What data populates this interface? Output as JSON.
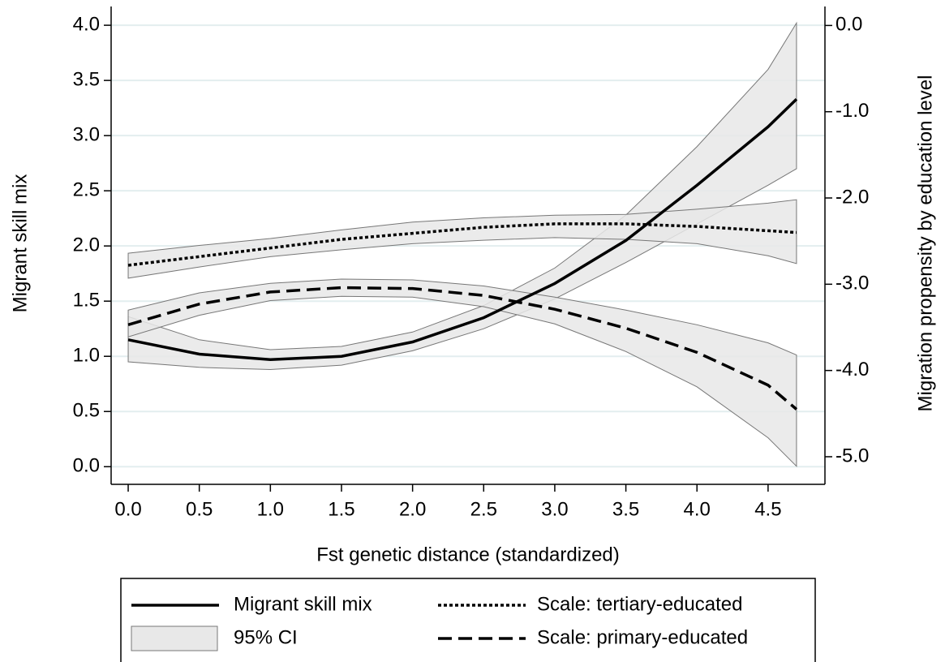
{
  "chart_data": {
    "type": "line",
    "xlabel": "Fst genetic distance (standardized)",
    "ylabel": "Migrant skill mix",
    "y2label": "Migration propensity by education level",
    "x": [
      0,
      0.5,
      1.0,
      1.5,
      2.0,
      2.5,
      3.0,
      3.5,
      4.0,
      4.5,
      4.7
    ],
    "xlim": [
      -0.12,
      4.9
    ],
    "xticks": [
      {
        "value": 0,
        "label": "0.0"
      },
      0.5,
      {
        "value": 1,
        "label": "1.0"
      },
      1.5,
      {
        "value": 2,
        "label": "2.0"
      },
      2.5,
      {
        "value": 3,
        "label": "3.0"
      },
      3.5,
      {
        "value": 4,
        "label": "4.0"
      },
      4.5
    ],
    "ylim": [
      -0.16,
      4.17
    ],
    "yticks": [
      {
        "value": 0,
        "label": "0.0"
      },
      0.5,
      {
        "value": 1,
        "label": "1.0"
      },
      1.5,
      {
        "value": 2,
        "label": "2.0"
      },
      2.5,
      {
        "value": 3,
        "label": "3.0"
      },
      3.5,
      {
        "value": 4,
        "label": "4.0"
      }
    ],
    "y2lim": [
      -5.32,
      0.22
    ],
    "y2ticks": [
      {
        "value": 0,
        "label": "0.0"
      },
      {
        "value": -1,
        "label": "-1.0"
      },
      {
        "value": -2,
        "label": "-2.0"
      },
      {
        "value": -3,
        "label": "-3.0"
      },
      {
        "value": -4,
        "label": "-4.0"
      },
      {
        "value": -5,
        "label": "-5.0"
      }
    ],
    "grid": true,
    "ci_name": "95% CI",
    "ci_color": "#e8e8e8",
    "series": [
      {
        "name": "Migrant skill mix",
        "color": "#000000",
        "dash": "solid",
        "values": [
          1.15,
          1.02,
          0.97,
          1.0,
          1.13,
          1.35,
          1.66,
          2.05,
          2.55,
          3.08,
          3.33
        ],
        "ci_lower": [
          0.95,
          0.9,
          0.88,
          0.92,
          1.05,
          1.25,
          1.52,
          1.85,
          2.2,
          2.55,
          2.7
        ],
        "ci_upper": [
          1.36,
          1.15,
          1.06,
          1.09,
          1.22,
          1.46,
          1.8,
          2.28,
          2.9,
          3.6,
          4.02
        ]
      },
      {
        "name": "Scale: tertiary-educated",
        "color": "#000000",
        "dash": "dotted",
        "axis": "y2",
        "values": [
          -2.78,
          -2.68,
          -2.58,
          -2.48,
          -2.41,
          -2.34,
          -2.3,
          -2.3,
          -2.33,
          -2.38,
          -2.4
        ],
        "ci_lower": [
          -2.93,
          -2.8,
          -2.68,
          -2.6,
          -2.53,
          -2.49,
          -2.46,
          -2.48,
          -2.53,
          -2.67,
          -2.76
        ],
        "ci_upper": [
          -2.64,
          -2.55,
          -2.47,
          -2.37,
          -2.28,
          -2.23,
          -2.2,
          -2.19,
          -2.13,
          -2.06,
          -2.02
        ]
      },
      {
        "name": "Scale: primary-educated",
        "color": "#000000",
        "dash": "dashed",
        "axis": "y2",
        "values": [
          -3.47,
          -3.23,
          -3.09,
          -3.04,
          -3.05,
          -3.13,
          -3.29,
          -3.51,
          -3.79,
          -4.17,
          -4.45
        ],
        "ci_lower": [
          -3.61,
          -3.36,
          -3.19,
          -3.14,
          -3.15,
          -3.26,
          -3.46,
          -3.78,
          -4.19,
          -4.78,
          -5.11
        ],
        "ci_upper": [
          -3.3,
          -3.1,
          -2.99,
          -2.94,
          -2.95,
          -3.02,
          -3.15,
          -3.3,
          -3.47,
          -3.68,
          -3.82
        ]
      }
    ]
  }
}
